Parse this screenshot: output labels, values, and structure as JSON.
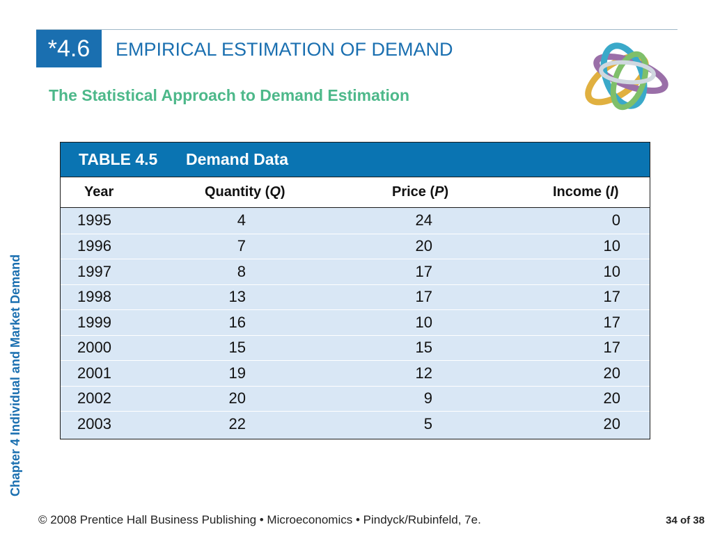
{
  "slide": {
    "section_number": "*4.6",
    "title": "EMPIRICAL ESTIMATION OF DEMAND",
    "subtitle": "The Statistical Approach to Demand Estimation",
    "side_label": "Chapter 4  Individual and Market Demand"
  },
  "table": {
    "caption_label": "TABLE 4.5",
    "caption_title": "Demand Data",
    "headers": {
      "year": "Year",
      "quantity_prefix": "Quantity (",
      "quantity_symbol": "Q",
      "price_prefix": "Price (",
      "price_symbol": "P",
      "income_prefix": "Income (",
      "income_symbol": "I",
      "close_paren": ")"
    },
    "rows": [
      {
        "year": "1995",
        "quantity": "4",
        "price": "24",
        "income": "0"
      },
      {
        "year": "1996",
        "quantity": "7",
        "price": "20",
        "income": "10"
      },
      {
        "year": "1997",
        "quantity": "8",
        "price": "17",
        "income": "10"
      },
      {
        "year": "1998",
        "quantity": "13",
        "price": "17",
        "income": "17"
      },
      {
        "year": "1999",
        "quantity": "16",
        "price": "10",
        "income": "17"
      },
      {
        "year": "2000",
        "quantity": "15",
        "price": "15",
        "income": "17"
      },
      {
        "year": "2001",
        "quantity": "19",
        "price": "12",
        "income": "20"
      },
      {
        "year": "2002",
        "quantity": "20",
        "price": "9",
        "income": "20"
      },
      {
        "year": "2003",
        "quantity": "22",
        "price": "5",
        "income": "20"
      }
    ]
  },
  "footer": {
    "text": "© 2008 Prentice Hall Business Publishing  •  Microeconomics  •  Pindyck/Rubinfeld, 7e.",
    "page": "34 of 38"
  },
  "colors": {
    "brand_blue": "#1a6fb0",
    "caption_blue": "#0a74b2",
    "subtitle_green": "#4db88a",
    "row_fill": "#d9e7f5"
  },
  "icons": {
    "logo": "interlocking-rings-logo-icon"
  }
}
